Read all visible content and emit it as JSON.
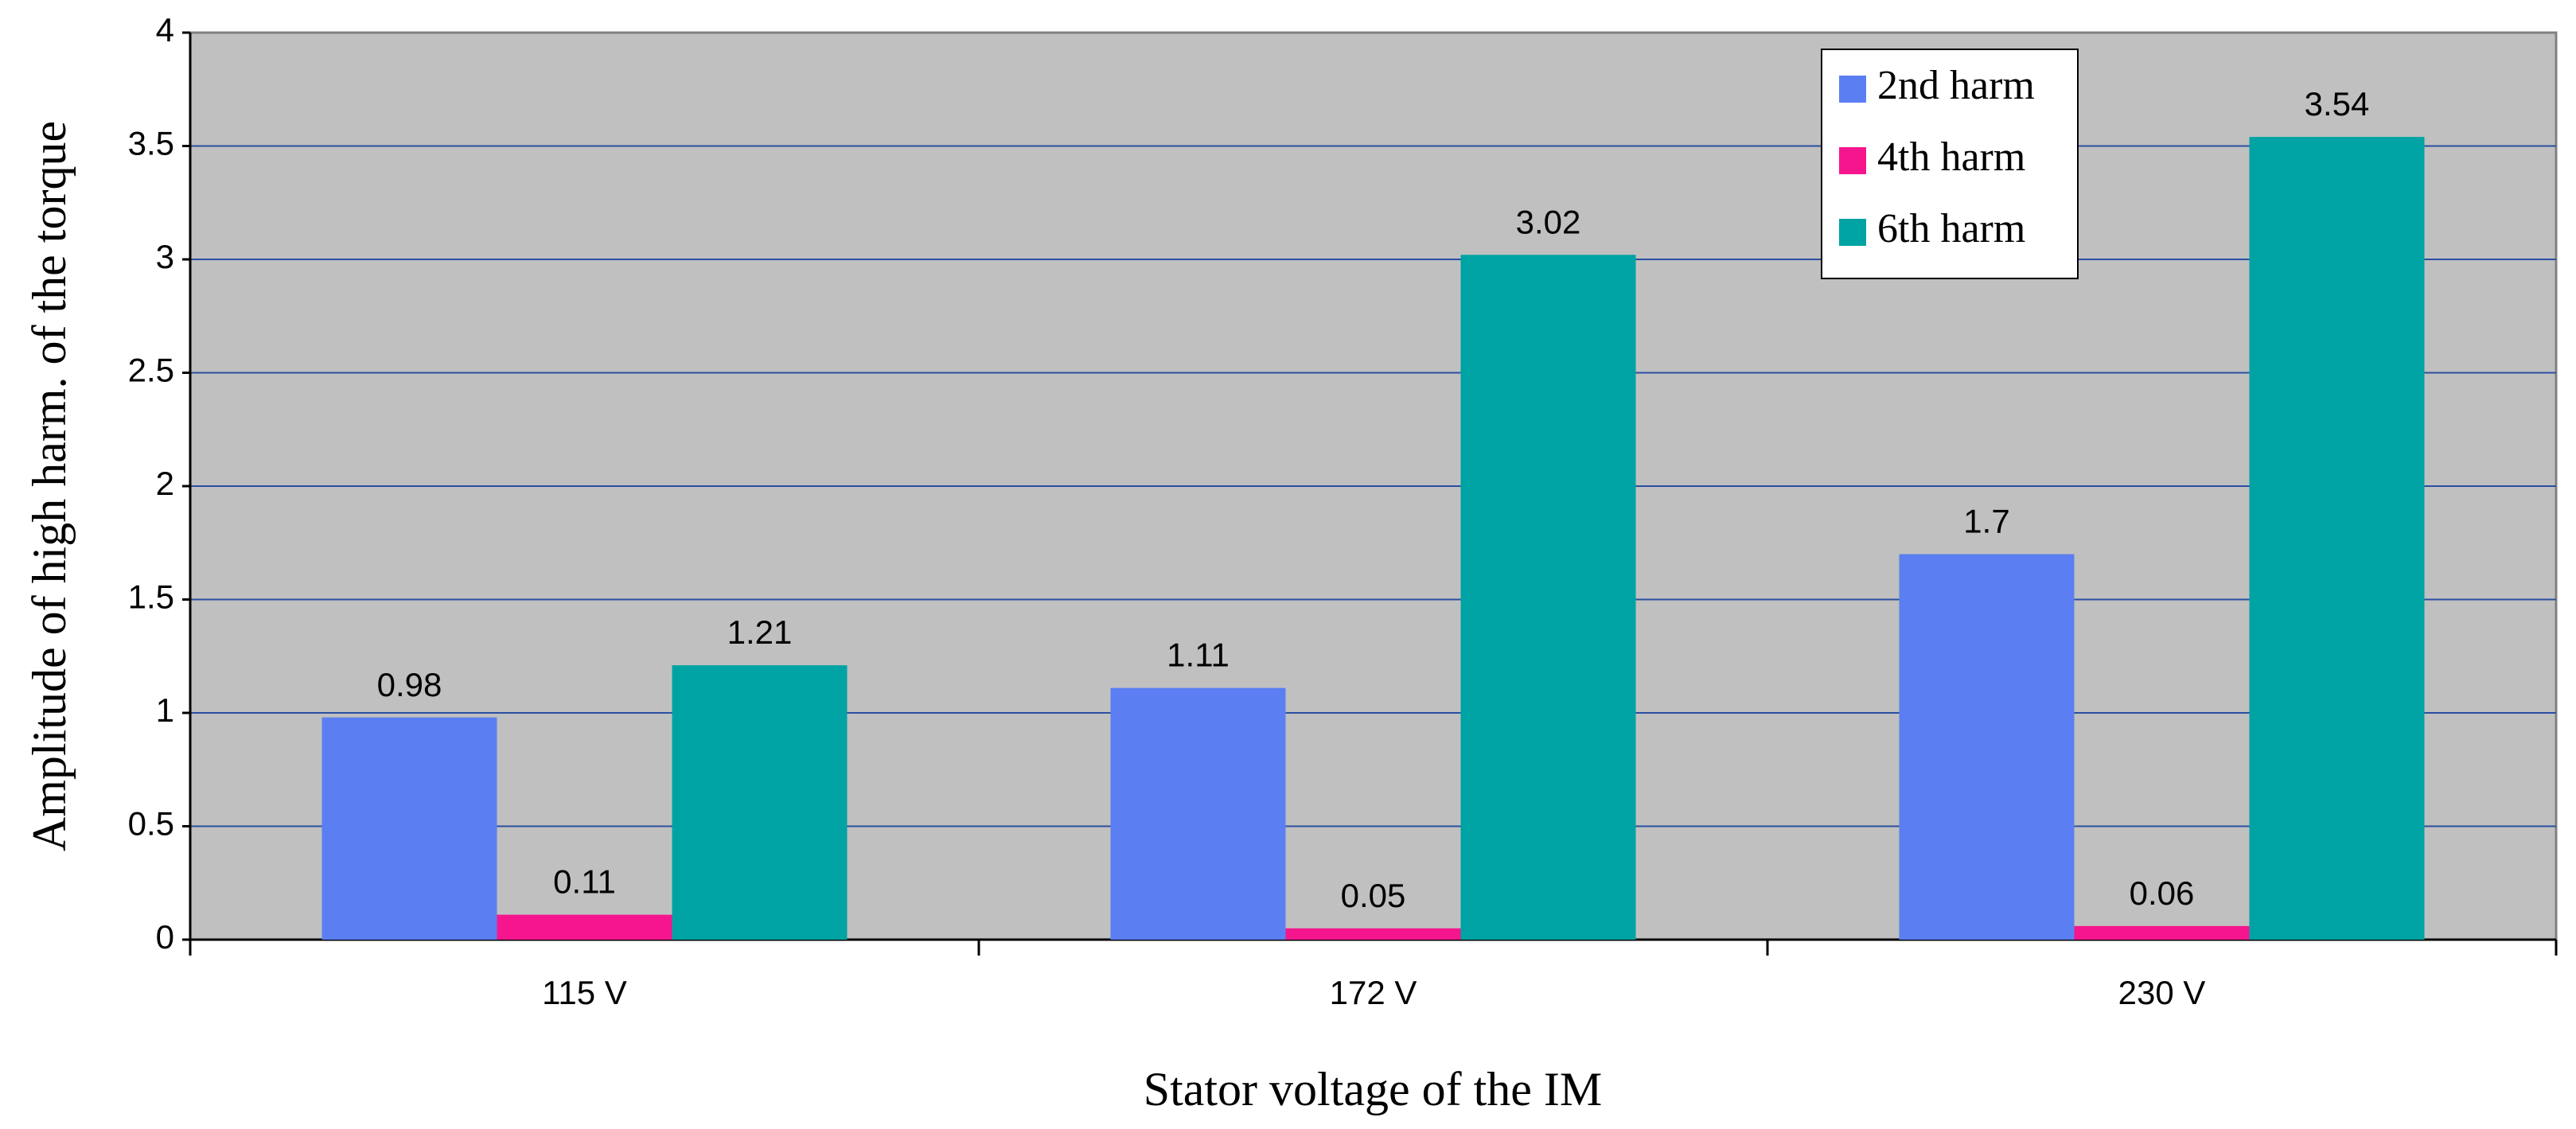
{
  "chart_data": {
    "type": "bar",
    "x_label": "Stator voltage of the IM",
    "y_label": "Amplitude of high harm. of the torque",
    "categories": [
      "115 V",
      "172 V",
      "230 V"
    ],
    "series": [
      {
        "name": "2nd harm",
        "color": "#5b7ff2",
        "values": [
          0.98,
          1.11,
          1.7
        ]
      },
      {
        "name": "4th harm",
        "color": "#f5168e",
        "values": [
          0.11,
          0.05,
          0.06
        ]
      },
      {
        "name": "6th harm",
        "color": "#00a3a3",
        "values": [
          1.21,
          3.02,
          3.54
        ]
      }
    ],
    "ylim": [
      0,
      4
    ],
    "yticks": [
      0,
      0.5,
      1,
      1.5,
      2,
      2.5,
      3,
      3.5,
      4
    ],
    "grid": true,
    "legend": "top-right",
    "data_labels": true
  }
}
